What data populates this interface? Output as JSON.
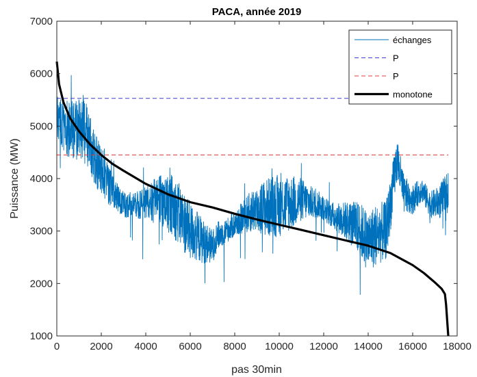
{
  "chart_data": {
    "type": "line",
    "title": "PACA, année 2019",
    "xlabel": "pas 30min",
    "ylabel": "Puissance (MW)",
    "xlim": [
      0,
      18000
    ],
    "ylim": [
      1000,
      7000
    ],
    "xticks": [
      0,
      2000,
      4000,
      6000,
      8000,
      10000,
      12000,
      14000,
      16000,
      18000
    ],
    "yticks": [
      1000,
      2000,
      3000,
      4000,
      5000,
      6000,
      7000
    ],
    "grid": false,
    "legend_position": "top-right",
    "series": [
      {
        "name": "échanges",
        "style": "solid",
        "color": "#0072BD",
        "trend": {
          "x": [
            0,
            300,
            700,
            1200,
            1700,
            2300,
            3000,
            3700,
            4500,
            5200,
            6000,
            6600,
            7000,
            7200,
            7600,
            8200,
            8800,
            9500,
            10200,
            11000,
            11800,
            12400,
            13000,
            13600,
            14000,
            14400,
            14800,
            15000,
            15300,
            15600,
            16000,
            16400,
            16800,
            17200,
            17600
          ],
          "y": [
            5200,
            5000,
            4900,
            5000,
            4400,
            3900,
            3500,
            3500,
            3600,
            3500,
            3000,
            2800,
            2700,
            2900,
            3000,
            3200,
            3400,
            3450,
            3500,
            3600,
            3500,
            3300,
            3200,
            3050,
            2800,
            2950,
            3000,
            3500,
            4400,
            3700,
            3600,
            3800,
            3500,
            3550,
            3750
          ]
        },
        "approx_max": 6250,
        "approx_min": 1000
      },
      {
        "name": "P",
        "style": "dashed",
        "color": "#3a3ad8",
        "x": [
          0,
          17600
        ],
        "y": [
          5530,
          5530
        ]
      },
      {
        "name": "P",
        "style": "dashed",
        "color": "#e03a3a",
        "x": [
          0,
          17600
        ],
        "y": [
          4450,
          4450
        ]
      },
      {
        "name": "monotone",
        "style": "solid-thick",
        "color": "#000000",
        "x": [
          0,
          100,
          300,
          600,
          1000,
          1500,
          2000,
          2500,
          3000,
          4000,
          5000,
          6000,
          7000,
          8000,
          9000,
          10000,
          11000,
          12000,
          13000,
          14000,
          15000,
          16000,
          16500,
          17000,
          17300,
          17450,
          17500,
          17550,
          17600
        ],
        "y": [
          6230,
          5800,
          5450,
          5150,
          4900,
          4650,
          4450,
          4280,
          4150,
          3900,
          3700,
          3550,
          3450,
          3330,
          3220,
          3120,
          3020,
          2920,
          2820,
          2720,
          2580,
          2350,
          2200,
          2020,
          1900,
          1800,
          1600,
          1300,
          1000
        ]
      }
    ]
  }
}
